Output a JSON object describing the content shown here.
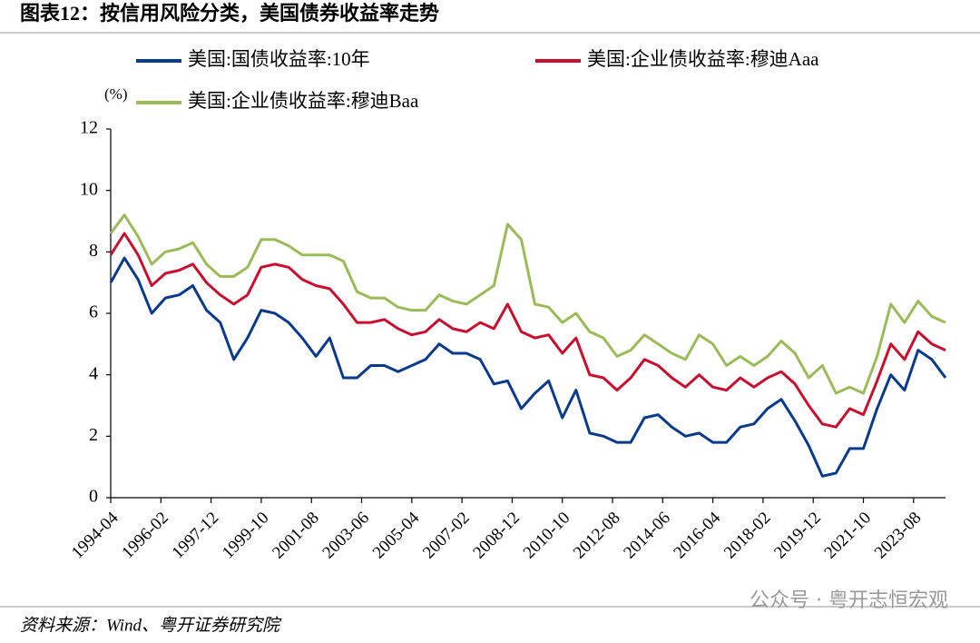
{
  "chart_data": {
    "type": "line",
    "title": "图表12：按信用风险分类，美国债券收益率走势",
    "y_label": "(%)",
    "x": [
      "1994-04",
      "1994-10",
      "1995-04",
      "1995-10",
      "1996-04",
      "1996-10",
      "1997-04",
      "1997-10",
      "1998-04",
      "1998-10",
      "1999-04",
      "1999-10",
      "2000-04",
      "2000-10",
      "2001-04",
      "2001-10",
      "2002-04",
      "2002-10",
      "2003-04",
      "2003-10",
      "2004-04",
      "2004-10",
      "2005-04",
      "2005-10",
      "2006-04",
      "2006-10",
      "2007-04",
      "2007-10",
      "2008-04",
      "2008-10",
      "2009-04",
      "2009-10",
      "2010-04",
      "2010-10",
      "2011-04",
      "2011-10",
      "2012-04",
      "2012-10",
      "2013-04",
      "2013-10",
      "2014-04",
      "2014-10",
      "2015-04",
      "2015-10",
      "2016-04",
      "2016-10",
      "2017-04",
      "2017-10",
      "2018-04",
      "2018-10",
      "2019-04",
      "2019-10",
      "2020-04",
      "2020-10",
      "2021-04",
      "2021-10",
      "2022-04",
      "2022-10",
      "2023-04",
      "2023-10",
      "2024-04",
      "2024-10"
    ],
    "series": [
      {
        "name": "美国:国债收益率:10年",
        "color": "#0a3a8c",
        "values": [
          7.0,
          7.8,
          7.1,
          6.0,
          6.5,
          6.6,
          6.9,
          6.1,
          5.7,
          4.5,
          5.2,
          6.1,
          6.0,
          5.7,
          5.2,
          4.6,
          5.2,
          3.9,
          3.9,
          4.3,
          4.3,
          4.1,
          4.3,
          4.5,
          5.0,
          4.7,
          4.7,
          4.5,
          3.7,
          3.8,
          2.9,
          3.4,
          3.8,
          2.6,
          3.5,
          2.1,
          2.0,
          1.8,
          1.8,
          2.6,
          2.7,
          2.3,
          2.0,
          2.1,
          1.8,
          1.8,
          2.3,
          2.4,
          2.9,
          3.2,
          2.5,
          1.7,
          0.7,
          0.8,
          1.6,
          1.6,
          2.9,
          4.0,
          3.5,
          4.8,
          4.5,
          3.9
        ]
      },
      {
        "name": "美国:企业债收益率:穆迪Aaa",
        "color": "#c8102e",
        "values": [
          7.9,
          8.6,
          7.9,
          6.9,
          7.3,
          7.4,
          7.6,
          7.0,
          6.6,
          6.3,
          6.6,
          7.5,
          7.6,
          7.5,
          7.1,
          6.9,
          6.8,
          6.3,
          5.7,
          5.7,
          5.8,
          5.5,
          5.3,
          5.4,
          5.8,
          5.5,
          5.4,
          5.7,
          5.5,
          6.3,
          5.4,
          5.2,
          5.3,
          4.7,
          5.2,
          4.0,
          3.9,
          3.5,
          3.9,
          4.5,
          4.3,
          3.9,
          3.6,
          4.0,
          3.6,
          3.5,
          3.9,
          3.6,
          3.9,
          4.1,
          3.7,
          3.0,
          2.4,
          2.3,
          2.9,
          2.7,
          3.8,
          5.0,
          4.5,
          5.4,
          5.0,
          4.8
        ]
      },
      {
        "name": "美国:企业债收益率:穆迪Baa",
        "color": "#9bbb59",
        "values": [
          8.6,
          9.2,
          8.5,
          7.6,
          8.0,
          8.1,
          8.3,
          7.6,
          7.2,
          7.2,
          7.5,
          8.4,
          8.4,
          8.2,
          7.9,
          7.9,
          7.9,
          7.7,
          6.7,
          6.5,
          6.5,
          6.2,
          6.1,
          6.1,
          6.6,
          6.4,
          6.3,
          6.6,
          6.9,
          8.9,
          8.4,
          6.3,
          6.2,
          5.7,
          6.0,
          5.4,
          5.2,
          4.6,
          4.8,
          5.3,
          5.0,
          4.7,
          4.5,
          5.3,
          5.0,
          4.3,
          4.6,
          4.3,
          4.6,
          5.1,
          4.7,
          3.9,
          4.3,
          3.4,
          3.6,
          3.4,
          4.6,
          6.3,
          5.7,
          6.4,
          5.9,
          5.7
        ]
      }
    ],
    "xlim": [
      "1994-04",
      "2024-10"
    ],
    "xticks": [
      "1994-04",
      "1996-02",
      "1997-12",
      "1999-10",
      "2001-08",
      "2003-06",
      "2005-04",
      "2007-02",
      "2008-12",
      "2010-10",
      "2012-08",
      "2014-06",
      "2016-04",
      "2018-02",
      "2019-12",
      "2021-10",
      "2023-08"
    ],
    "ylim": [
      0,
      12
    ],
    "yticks": [
      0,
      2,
      4,
      6,
      8,
      10,
      12
    ],
    "grid": false,
    "legend": "top"
  },
  "source": "资料来源：Wind、粤开证券研究院",
  "watermark": "公众号 · 粤开志恒宏观"
}
